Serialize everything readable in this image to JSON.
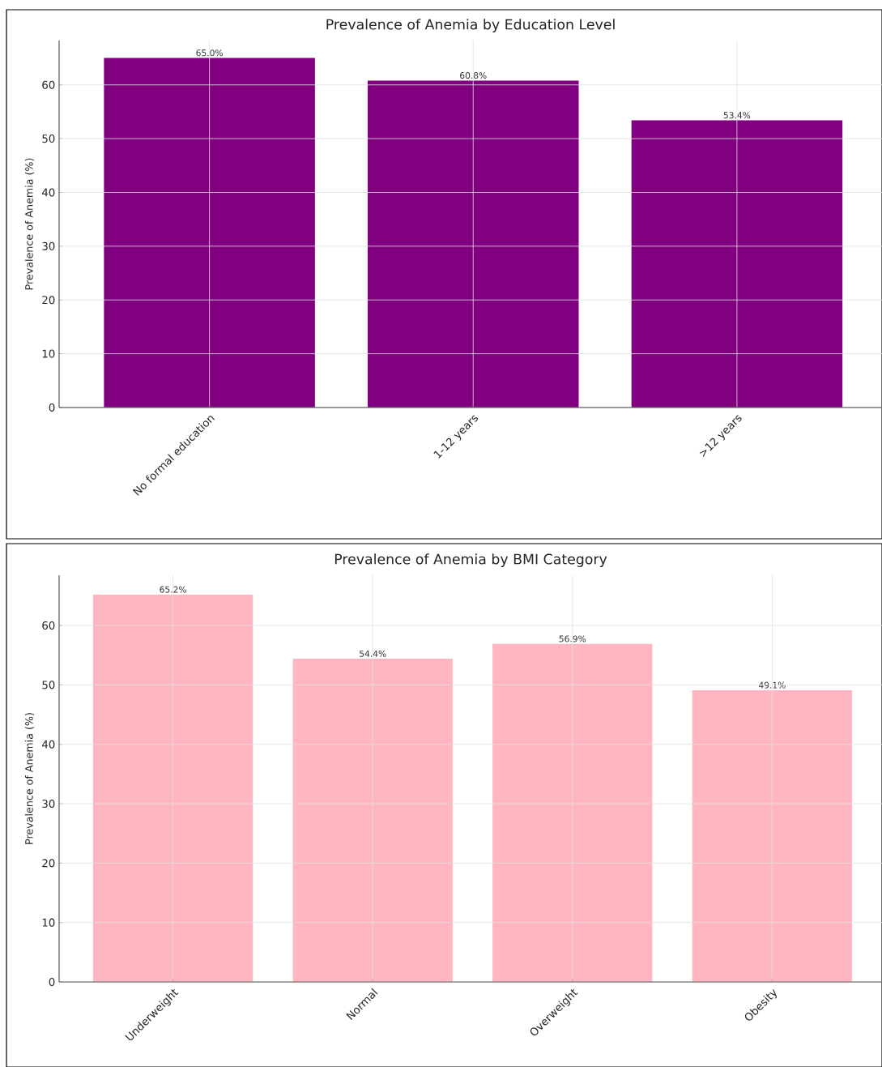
{
  "chart_data": [
    {
      "type": "bar",
      "title": "Prevalence of Anemia by Education Level",
      "ylabel": "Prevalence of Anemia (%)",
      "categories": [
        "No formal education",
        "1-12 years",
        ">12 years"
      ],
      "values": [
        65.0,
        60.8,
        53.4
      ],
      "value_labels": [
        "65.0%",
        "60.8%",
        "53.4%"
      ],
      "color": "#800080",
      "ylim": [
        0,
        68.25
      ],
      "yticks": [
        0,
        10,
        20,
        30,
        40,
        50,
        60
      ],
      "grid": true
    },
    {
      "type": "bar",
      "title": "Prevalence of Anemia by BMI Category",
      "ylabel": "Prevalence of Anemia (%)",
      "categories": [
        "Underweight",
        "Normal",
        "Overweight",
        "Obesity"
      ],
      "values": [
        65.2,
        54.4,
        56.9,
        49.1
      ],
      "value_labels": [
        "65.2%",
        "54.4%",
        "56.9%",
        "49.1%"
      ],
      "color": "#ffb6c1",
      "ylim": [
        0,
        68.46
      ],
      "yticks": [
        0,
        10,
        20,
        30,
        40,
        50,
        60
      ],
      "grid": true
    }
  ]
}
